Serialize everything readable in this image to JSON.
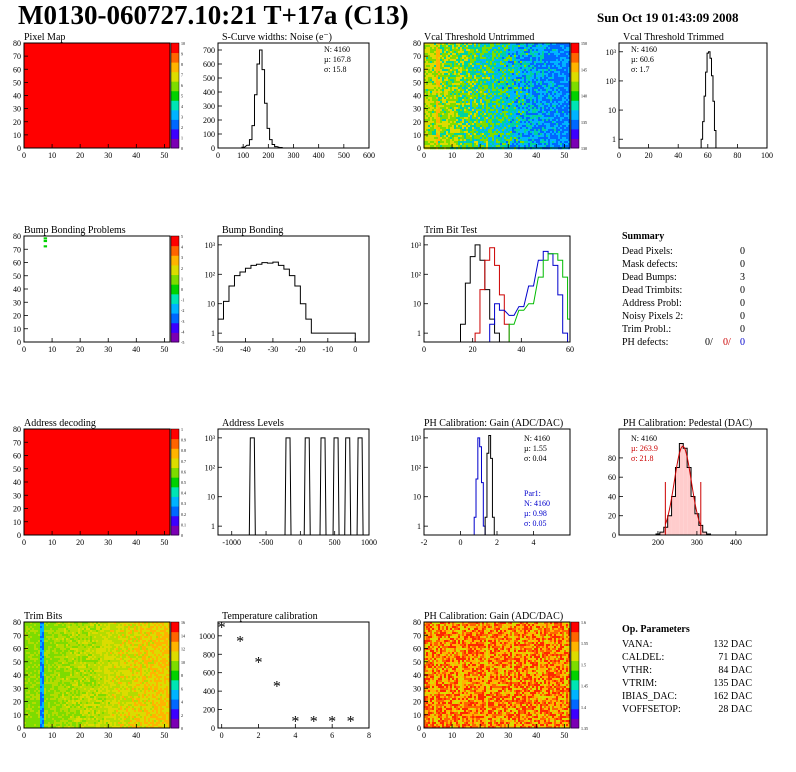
{
  "header": {
    "title": "M0130-060727.10:21 T+17a (C13)",
    "date": "Sun Oct 19 01:43:09 2008"
  },
  "colors": {
    "frame": "#000000",
    "histogram_line": "#000000",
    "red_series": "#cc0000",
    "green_series": "#00bb00",
    "blue_series": "#0000cc",
    "map_uniform": "#ff0000"
  },
  "chart_data": [
    {
      "id": "pixel-map",
      "type": "heatmap",
      "title": "Pixel Map",
      "xlim": [
        0,
        52
      ],
      "ylim": [
        0,
        80
      ],
      "xticks": [
        "0",
        "10",
        "20",
        "30",
        "40",
        "50"
      ],
      "yticks": [
        "0",
        "10",
        "20",
        "30",
        "40",
        "50",
        "60",
        "70",
        "80"
      ],
      "colorbar_ticks": [
        "0",
        "1",
        "2",
        "3",
        "4",
        "5",
        "6",
        "7",
        "8",
        "9",
        "10"
      ],
      "uniform_value": 10
    },
    {
      "id": "noise",
      "type": "bar",
      "title": "S-Curve widths: Noise (e⁻)",
      "xlim": [
        0,
        600
      ],
      "ylim": [
        0,
        750
      ],
      "xticks": [
        "0",
        "100",
        "200",
        "300",
        "400",
        "500",
        "600"
      ],
      "yticks": [
        "0",
        "100",
        "200",
        "300",
        "400",
        "500",
        "600",
        "700"
      ],
      "stats": [
        "N: 4160",
        "µ: 167.8",
        "σ: 15.8"
      ],
      "hist": [
        [
          100,
          5
        ],
        [
          120,
          20
        ],
        [
          130,
          60
        ],
        [
          140,
          160
        ],
        [
          150,
          380
        ],
        [
          160,
          600
        ],
        [
          170,
          700
        ],
        [
          180,
          560
        ],
        [
          190,
          320
        ],
        [
          200,
          140
        ],
        [
          210,
          60
        ],
        [
          220,
          25
        ],
        [
          230,
          10
        ],
        [
          250,
          4
        ]
      ]
    },
    {
      "id": "vcal-untrimmed",
      "type": "heatmap",
      "title": "Vcal Threshold Untrimmed",
      "xlim": [
        0,
        52
      ],
      "ylim": [
        0,
        80
      ],
      "xticks": [
        "0",
        "10",
        "20",
        "30",
        "40",
        "50"
      ],
      "yticks": [
        "0",
        "10",
        "20",
        "30",
        "40",
        "50",
        "60",
        "70",
        "80"
      ],
      "colorbar_ticks": [
        "130",
        "135",
        "140",
        "145",
        "150"
      ],
      "trend": "high on left, low on right"
    },
    {
      "id": "vcal-trimmed",
      "type": "bar",
      "title": "Vcal Threshold Trimmed",
      "log_y": true,
      "xlim": [
        0,
        100
      ],
      "ylim": [
        0.5,
        2000
      ],
      "xticks": [
        "0",
        "20",
        "40",
        "60",
        "80",
        "100"
      ],
      "yticks": [
        "1",
        "10",
        "10²",
        "10³"
      ],
      "stats": [
        "N: 4160",
        "µ: 60.6",
        "σ: 1.7"
      ],
      "hist": [
        [
          56,
          1
        ],
        [
          57,
          4
        ],
        [
          58,
          30
        ],
        [
          59,
          200
        ],
        [
          60,
          900
        ],
        [
          61,
          1000
        ],
        [
          62,
          600
        ],
        [
          63,
          150
        ],
        [
          64,
          20
        ],
        [
          65,
          2
        ]
      ]
    },
    {
      "id": "bump-problems",
      "type": "heatmap",
      "title": "Bump Bonding Problems",
      "xlim": [
        0,
        52
      ],
      "ylim": [
        0,
        80
      ],
      "xticks": [
        "0",
        "10",
        "20",
        "30",
        "40",
        "50"
      ],
      "yticks": [
        "0",
        "10",
        "20",
        "30",
        "40",
        "50",
        "60",
        "70",
        "80"
      ],
      "colorbar_ticks": [
        "-5",
        "-4",
        "-3",
        "-2",
        "-1",
        "0",
        "1",
        "2",
        "3",
        "4",
        "5"
      ],
      "points": [
        [
          7,
          78
        ],
        [
          7,
          76
        ],
        [
          7,
          72
        ]
      ]
    },
    {
      "id": "bump-bonding",
      "type": "bar",
      "title": "Bump Bonding",
      "log_y": true,
      "xlim": [
        -50,
        5
      ],
      "ylim": [
        0.5,
        2000
      ],
      "xticks": [
        "-50",
        "-40",
        "-30",
        "-20",
        "-10",
        "0"
      ],
      "yticks": [
        "1",
        "10",
        "10²",
        "10³"
      ],
      "hist": [
        [
          -49,
          3
        ],
        [
          -47,
          12
        ],
        [
          -45,
          40
        ],
        [
          -43,
          90
        ],
        [
          -41,
          120
        ],
        [
          -39,
          160
        ],
        [
          -37,
          200
        ],
        [
          -35,
          220
        ],
        [
          -33,
          250
        ],
        [
          -31,
          240
        ],
        [
          -29,
          260
        ],
        [
          -27,
          200
        ],
        [
          -25,
          150
        ],
        [
          -23,
          90
        ],
        [
          -21,
          40
        ],
        [
          -19,
          10
        ],
        [
          -17,
          3
        ],
        [
          -15,
          1
        ],
        [
          -1,
          1
        ]
      ]
    },
    {
      "id": "trim-bit-test",
      "type": "line",
      "title": "Trim Bit Test",
      "log_y": true,
      "xlim": [
        0,
        60
      ],
      "ylim": [
        0.5,
        2000
      ],
      "xticks": [
        "0",
        "20",
        "40",
        "60"
      ],
      "yticks": [
        "1",
        "10",
        "10²",
        "10³"
      ],
      "series": [
        {
          "color": "#000000",
          "points": [
            [
              16,
              2
            ],
            [
              18,
              50
            ],
            [
              20,
              400
            ],
            [
              22,
              1000
            ],
            [
              24,
              300
            ],
            [
              26,
              30
            ],
            [
              28,
              3
            ],
            [
              30,
              1
            ]
          ]
        },
        {
          "color": "#cc0000",
          "points": [
            [
              22,
              1
            ],
            [
              24,
              30
            ],
            [
              26,
              300
            ],
            [
              28,
              800
            ],
            [
              30,
              200
            ],
            [
              32,
              20
            ],
            [
              34,
              2
            ]
          ]
        },
        {
          "color": "#0000cc",
          "points": [
            [
              28,
              2
            ],
            [
              30,
              10
            ],
            [
              32,
              6
            ],
            [
              36,
              4
            ],
            [
              40,
              8
            ],
            [
              44,
              40
            ],
            [
              48,
              300
            ],
            [
              50,
              600
            ],
            [
              52,
              500
            ],
            [
              54,
              200
            ],
            [
              56,
              20
            ],
            [
              58,
              1
            ]
          ]
        },
        {
          "color": "#00bb00",
          "points": [
            [
              36,
              2
            ],
            [
              40,
              6
            ],
            [
              44,
              10
            ],
            [
              48,
              80
            ],
            [
              50,
              300
            ],
            [
              52,
              500
            ],
            [
              54,
              500
            ],
            [
              56,
              300
            ],
            [
              58,
              80
            ],
            [
              60,
              3
            ]
          ]
        }
      ]
    },
    {
      "id": "summary",
      "type": "table",
      "title": "Summary",
      "rows": [
        {
          "label": "Dead Pixels:",
          "value": "0"
        },
        {
          "label": "Mask defects:",
          "value": "0"
        },
        {
          "label": "Dead Bumps:",
          "value": "3"
        },
        {
          "label": "Dead Trimbits:",
          "value": "0"
        },
        {
          "label": "Address Probl:",
          "value": "0"
        },
        {
          "label": "Noisy Pixels 2:",
          "value": "0"
        },
        {
          "label": "Trim Probl.:",
          "value": "0"
        },
        {
          "label": "PH defects:",
          "value": "0",
          "extra": [
            "0/",
            "0/"
          ]
        }
      ]
    },
    {
      "id": "address-decoding",
      "type": "heatmap",
      "title": "Address decoding",
      "xlim": [
        0,
        52
      ],
      "ylim": [
        0,
        80
      ],
      "xticks": [
        "0",
        "10",
        "20",
        "30",
        "40",
        "50"
      ],
      "yticks": [
        "0",
        "10",
        "20",
        "30",
        "40",
        "50",
        "60",
        "70",
        "80"
      ],
      "colorbar_ticks": [
        "0",
        "0.1",
        "0.2",
        "0.3",
        "0.4",
        "0.5",
        "0.6",
        "0.7",
        "0.8",
        "0.9",
        "1"
      ],
      "uniform_value": 1
    },
    {
      "id": "address-levels",
      "type": "bar",
      "title": "Address Levels",
      "log_y": true,
      "xlim": [
        -1200,
        1000
      ],
      "ylim": [
        0.5,
        2000
      ],
      "xticks": [
        "-1000",
        "-500",
        "0",
        "500",
        "1000"
      ],
      "yticks": [
        "1",
        "10",
        "10²",
        "10³"
      ],
      "peaks": [
        -700,
        -180,
        100,
        330,
        520,
        690,
        870
      ],
      "peak_height": 1000
    },
    {
      "id": "ph-gain",
      "type": "bar",
      "title": "PH Calibration: Gain (ADC/DAC)",
      "log_y": true,
      "xlim": [
        -2,
        6
      ],
      "ylim": [
        0.5,
        2000
      ],
      "xticks": [
        "-2",
        "0",
        "2",
        "4"
      ],
      "yticks": [
        "1",
        "10",
        "10²",
        "10³"
      ],
      "stats": [
        "N: 4160",
        "µ: 1.55",
        "σ: 0.04"
      ],
      "fit_stats": [
        "Par1:",
        "N: 4160",
        "µ: 0.98",
        "σ: 0.05"
      ],
      "hist_blue": [
        [
          0.8,
          2
        ],
        [
          0.9,
          40
        ],
        [
          1.0,
          1000
        ],
        [
          1.1,
          500
        ],
        [
          1.2,
          30
        ],
        [
          1.3,
          1
        ]
      ],
      "hist_black": [
        [
          1.4,
          2
        ],
        [
          1.5,
          300
        ],
        [
          1.6,
          1200
        ],
        [
          1.7,
          200
        ],
        [
          1.8,
          2
        ]
      ]
    },
    {
      "id": "ph-pedestal",
      "type": "bar",
      "title": "PH Calibration: Pedestal (DAC)",
      "xlim": [
        100,
        480
      ],
      "ylim": [
        0,
        110
      ],
      "xticks": [
        "200",
        "300",
        "400"
      ],
      "yticks": [
        "0",
        "20",
        "40",
        "60",
        "80"
      ],
      "stats": [
        "N: 4160",
        "µ: 263.9",
        "σ: 21.8"
      ],
      "hist": [
        [
          200,
          1
        ],
        [
          210,
          3
        ],
        [
          220,
          8
        ],
        [
          230,
          20
        ],
        [
          240,
          40
        ],
        [
          250,
          70
        ],
        [
          260,
          95
        ],
        [
          270,
          90
        ],
        [
          280,
          70
        ],
        [
          290,
          40
        ],
        [
          300,
          22
        ],
        [
          310,
          10
        ],
        [
          320,
          3
        ],
        [
          330,
          1
        ]
      ],
      "fit_mean": 263.9,
      "fit_sigma": 21.8,
      "fit_peak": 92,
      "fit_range": [
        219,
        310
      ]
    },
    {
      "id": "trim-bits",
      "type": "heatmap",
      "title": "Trim Bits",
      "xlim": [
        0,
        52
      ],
      "ylim": [
        0,
        80
      ],
      "xticks": [
        "0",
        "10",
        "20",
        "30",
        "40",
        "50"
      ],
      "yticks": [
        "0",
        "10",
        "20",
        "30",
        "40",
        "50",
        "60",
        "70",
        "80"
      ],
      "colorbar_ticks": [
        "0",
        "2",
        "4",
        "6",
        "8",
        "10",
        "12",
        "14",
        "16"
      ],
      "trend": "green on left, yellow-orange on right; column 6 low"
    },
    {
      "id": "temperature",
      "type": "scatter",
      "title": "Temperature calibration",
      "xlim": [
        -0.2,
        8
      ],
      "ylim": [
        0,
        1150
      ],
      "xticks": [
        "0",
        "2",
        "4",
        "6",
        "8"
      ],
      "yticks": [
        "0",
        "200",
        "400",
        "600",
        "800",
        "1000"
      ],
      "points": [
        [
          0,
          1100
        ],
        [
          1,
          950
        ],
        [
          2,
          720
        ],
        [
          3,
          460
        ],
        [
          4,
          80
        ],
        [
          5,
          80
        ],
        [
          6,
          80
        ],
        [
          7,
          80
        ]
      ]
    },
    {
      "id": "ph-gain-map",
      "type": "heatmap",
      "title": "PH Calibration: Gain (ADC/DAC)",
      "xlim": [
        0,
        52
      ],
      "ylim": [
        0,
        80
      ],
      "xticks": [
        "0",
        "10",
        "20",
        "30",
        "40",
        "50"
      ],
      "yticks": [
        "0",
        "10",
        "20",
        "30",
        "40",
        "50",
        "60",
        "70",
        "80"
      ],
      "colorbar_ticks": [
        "1.35",
        "1.4",
        "1.45",
        "1.5",
        "1.55",
        "1.6"
      ],
      "trend": "orange-red with yellow streaks"
    },
    {
      "id": "op-params",
      "type": "table",
      "title": "Op. Parameters",
      "rows": [
        {
          "label": "VANA:",
          "value": "132 DAC"
        },
        {
          "label": "CALDEL:",
          "value": "71 DAC"
        },
        {
          "label": "VTHR:",
          "value": "84 DAC"
        },
        {
          "label": "VTRIM:",
          "value": "135 DAC"
        },
        {
          "label": "IBIAS_DAC:",
          "value": "162 DAC"
        },
        {
          "label": "VOFFSETOP:",
          "value": "28 DAC"
        }
      ]
    }
  ]
}
